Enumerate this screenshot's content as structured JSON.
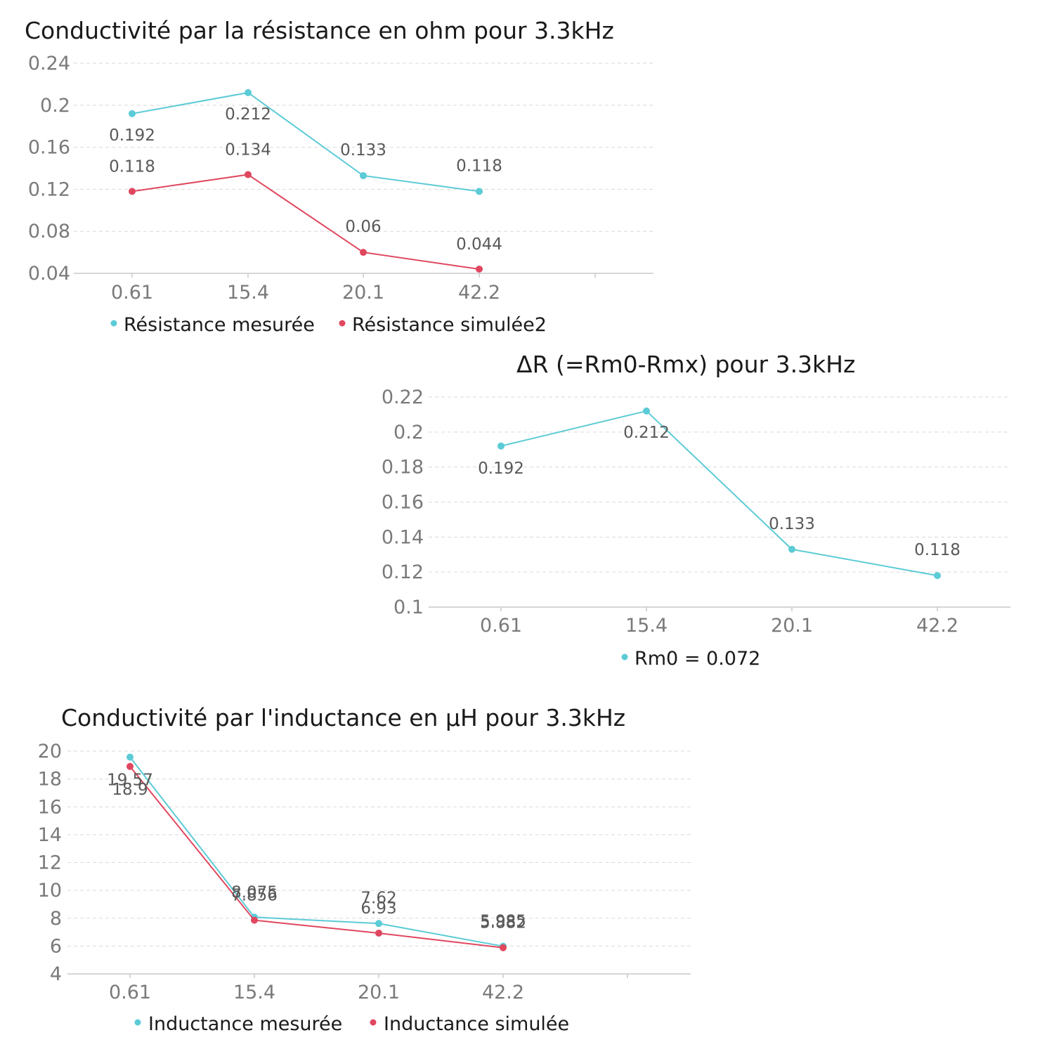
{
  "chart_data": [
    {
      "type": "line",
      "title": "Conductivité par la résistance en ohm pour 3.3kHz",
      "categories": [
        "0.61",
        "15.4",
        "20.1",
        "42.2"
      ],
      "ylim": [
        0.04,
        0.24
      ],
      "yticks": [
        "0.24",
        "0.2",
        "0.16",
        "0.12",
        "0.08",
        "0.04"
      ],
      "ytick_values": [
        0.24,
        0.2,
        0.16,
        0.12,
        0.08,
        0.04
      ],
      "grid": true,
      "legend_position": "bottom-left",
      "series": [
        {
          "name": "Résistance mesurée",
          "color": "#5bcbd6",
          "values": [
            0.192,
            0.212,
            0.133,
            0.118
          ],
          "labels": [
            "0.192",
            "0.212",
            "0.133",
            "0.118"
          ]
        },
        {
          "name": "Résistance simulée2",
          "color": "#e0475f",
          "values": [
            0.118,
            0.134,
            0.06,
            0.044
          ],
          "labels": [
            "0.118",
            "0.134",
            "0.06",
            "0.044"
          ]
        }
      ]
    },
    {
      "type": "line",
      "title": "ΔR (=Rm0-Rmx) pour 3.3kHz",
      "categories": [
        "0.61",
        "15.4",
        "20.1",
        "42.2"
      ],
      "ylim": [
        0.1,
        0.22
      ],
      "yticks": [
        "0.22",
        "0.2",
        "0.18",
        "0.16",
        "0.14",
        "0.12",
        "0.1"
      ],
      "ytick_values": [
        0.22,
        0.2,
        0.18,
        0.16,
        0.14,
        0.12,
        0.1
      ],
      "grid": true,
      "legend_position": "bottom-center",
      "series": [
        {
          "name": "Rm0 = 0.072",
          "color": "#5bcbd6",
          "values": [
            0.192,
            0.212,
            0.133,
            0.118
          ],
          "labels": [
            "0.192",
            "0.212",
            "0.133",
            "0.118"
          ]
        }
      ]
    },
    {
      "type": "line",
      "title": "Conductivité par l'inductance en µH pour 3.3kHz",
      "categories": [
        "0.61",
        "15.4",
        "20.1",
        "42.2"
      ],
      "ylim": [
        4,
        20
      ],
      "yticks": [
        "20",
        "18",
        "16",
        "14",
        "12",
        "10",
        "8",
        "6",
        "4"
      ],
      "ytick_values": [
        20,
        18,
        16,
        14,
        12,
        10,
        8,
        6,
        4
      ],
      "grid": true,
      "legend_position": "bottom-left",
      "series": [
        {
          "name": "Inductance mesurée",
          "color": "#5bcbd6",
          "values": [
            19.57,
            8.075,
            7.62,
            5.985
          ],
          "labels": [
            "19.57",
            "8.075",
            "7.62",
            "5.985"
          ]
        },
        {
          "name": "Inductance simulée",
          "color": "#e0475f",
          "values": [
            18.9,
            7.856,
            6.93,
            5.882
          ],
          "labels": [
            "18.9",
            "7.856",
            "6.93",
            "5.882"
          ]
        }
      ]
    }
  ]
}
